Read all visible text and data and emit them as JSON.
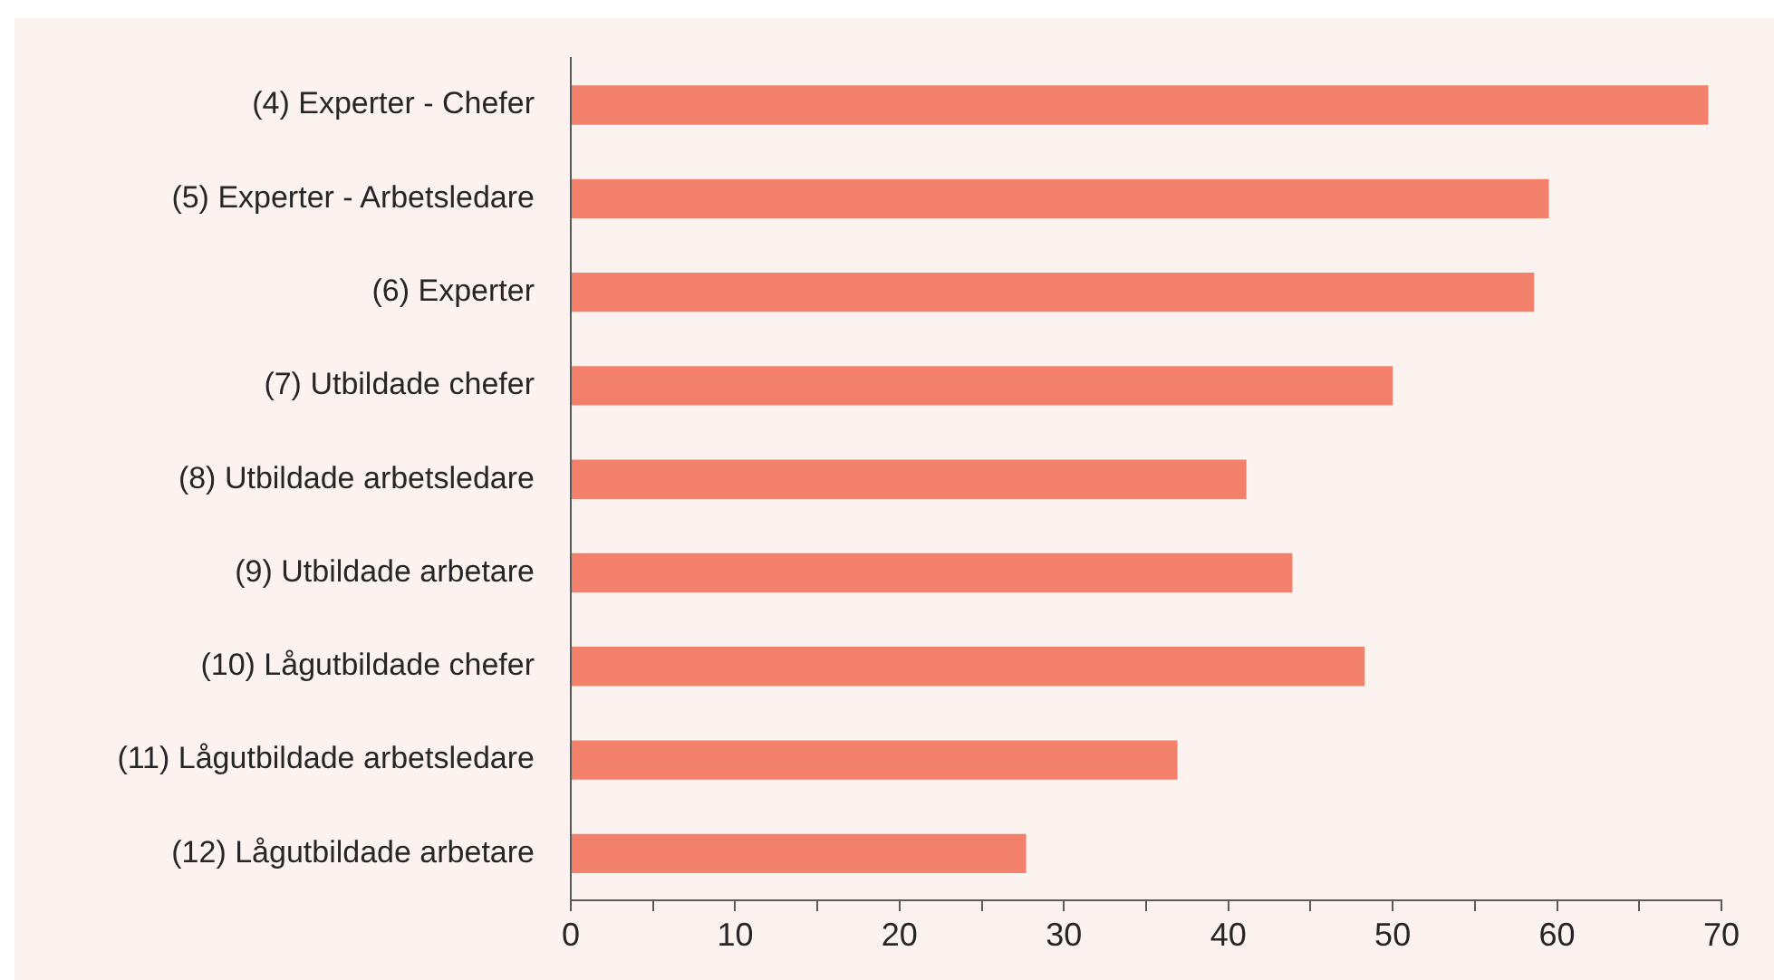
{
  "chart_data": {
    "type": "bar",
    "orientation": "horizontal",
    "categories": [
      "(4) Experter - Chefer",
      "(5) Experter - Arbetsledare",
      "(6) Experter",
      "(7) Utbildade chefer",
      "(8) Utbildade arbetsledare",
      "(9) Utbildade arbetare",
      "(10) Lågutbildade chefer",
      "(11) Lågutbildade arbetsledare",
      "(12) Lågutbildade arbetare"
    ],
    "values": [
      69.2,
      59.5,
      58.6,
      50,
      41.1,
      43.9,
      48.3,
      36.9,
      27.7
    ],
    "color": "#f2806b",
    "xlim": [
      0,
      70
    ],
    "xticks": [
      0,
      {
        "value": 5,
        "label": null
      },
      10,
      {
        "value": 15,
        "label": null
      },
      20,
      {
        "value": 25,
        "label": null
      },
      30,
      {
        "value": 35,
        "label": null
      },
      40,
      {
        "value": 45,
        "label": null
      },
      50,
      {
        "value": 55,
        "label": null
      },
      60,
      {
        "value": 65,
        "label": null
      },
      70
    ],
    "grid": false,
    "legend": false
  }
}
